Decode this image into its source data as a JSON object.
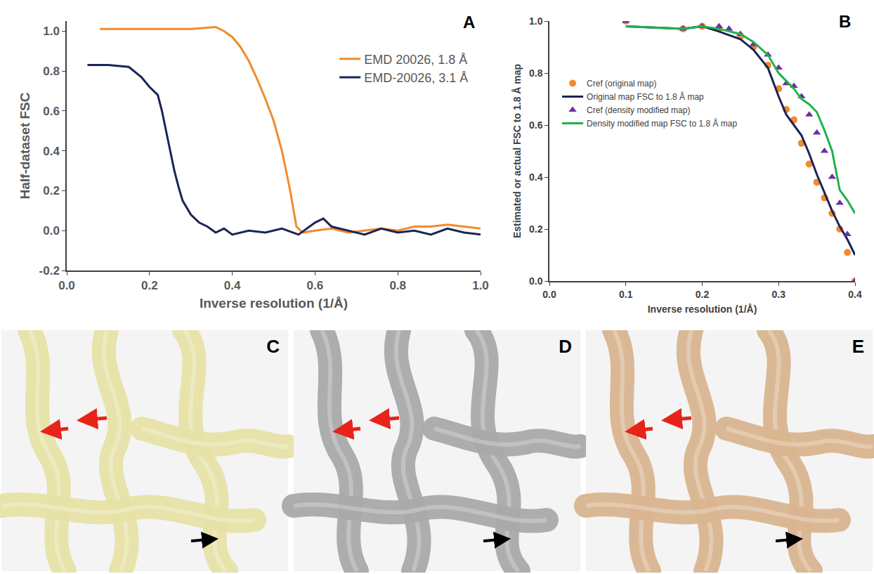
{
  "chart_data": [
    {
      "type": "line",
      "letter": "A",
      "x_label": "Inverse resolution (1/Å)",
      "y_label": "Half-dataset FSC",
      "xlim": [
        0,
        1.0
      ],
      "ylim": [
        -0.2,
        1.05
      ],
      "xticks": [
        {
          "value": 0,
          "label": "0.0"
        },
        {
          "value": 0.2,
          "label": "0.2"
        },
        {
          "value": 0.4,
          "label": "0.4"
        },
        {
          "value": 0.6,
          "label": "0.6"
        },
        {
          "value": 0.8,
          "label": "0.8"
        },
        {
          "value": 1.0,
          "label": "1.0"
        }
      ],
      "yticks": [
        -0.2,
        {
          "value": 0,
          "label": "0.0"
        },
        0.2,
        0.4,
        0.6,
        0.8,
        {
          "value": 1.0,
          "label": "1.0"
        }
      ],
      "grid": false,
      "legend": "upper right",
      "series": [
        {
          "name": "EMD 20026, 1.8 Å",
          "color": "#f28a2e",
          "type": "line",
          "x": [
            0.08,
            0.15,
            0.25,
            0.3,
            0.36,
            0.38,
            0.4,
            0.42,
            0.44,
            0.46,
            0.48,
            0.5,
            0.52,
            0.54,
            0.555,
            0.57,
            0.6,
            0.64,
            0.68,
            0.72,
            0.76,
            0.8,
            0.84,
            0.88,
            0.92,
            0.96,
            1.0
          ],
          "values": [
            1.01,
            1.01,
            1.01,
            1.01,
            1.02,
            1.0,
            0.97,
            0.92,
            0.85,
            0.76,
            0.66,
            0.55,
            0.4,
            0.2,
            0.02,
            -0.01,
            0.0,
            0.01,
            -0.01,
            0.0,
            0.01,
            0.0,
            0.02,
            0.02,
            0.03,
            0.02,
            0.01
          ]
        },
        {
          "name": "EMD-20026, 3.1 Å",
          "color": "#1b2456",
          "type": "line",
          "x": [
            0.05,
            0.1,
            0.15,
            0.18,
            0.2,
            0.22,
            0.23,
            0.24,
            0.25,
            0.26,
            0.27,
            0.28,
            0.3,
            0.32,
            0.34,
            0.36,
            0.38,
            0.4,
            0.44,
            0.48,
            0.52,
            0.56,
            0.6,
            0.62,
            0.64,
            0.68,
            0.72,
            0.76,
            0.8,
            0.84,
            0.88,
            0.92,
            0.96,
            1.0
          ],
          "values": [
            0.83,
            0.83,
            0.82,
            0.77,
            0.72,
            0.68,
            0.6,
            0.5,
            0.4,
            0.3,
            0.22,
            0.15,
            0.08,
            0.04,
            0.02,
            -0.01,
            0.01,
            -0.02,
            0.0,
            -0.01,
            0.01,
            -0.02,
            0.04,
            0.06,
            0.02,
            0.0,
            -0.02,
            0.01,
            -0.01,
            0.0,
            -0.02,
            0.01,
            -0.01,
            -0.02
          ]
        }
      ]
    },
    {
      "type": "line",
      "letter": "B",
      "x_label": "Inverse resolution (1/Å)",
      "y_label": "Estimated or actual FSC to 1.8 Å map",
      "xlim": [
        0,
        0.4
      ],
      "ylim": [
        0,
        1.0
      ],
      "xticks": [
        {
          "value": 0,
          "label": "0.0"
        },
        {
          "value": 0.1,
          "label": "0.1"
        },
        {
          "value": 0.2,
          "label": "0.2"
        },
        {
          "value": 0.3,
          "label": "0.3"
        },
        {
          "value": 0.4,
          "label": "0.4"
        }
      ],
      "yticks": [
        {
          "value": 0,
          "label": "0.0"
        },
        0.2,
        0.4,
        0.6,
        0.8,
        {
          "value": 1.0,
          "label": "1.0"
        }
      ],
      "grid": false,
      "legend": "center left",
      "series": [
        {
          "name": "Cref (original map)",
          "color": "#f28a2e",
          "type": "scatter",
          "marker": "circle",
          "x": [
            0.1,
            0.175,
            0.2,
            0.222,
            0.25,
            0.267,
            0.286,
            0.3,
            0.31,
            0.32,
            0.33,
            0.34,
            0.35,
            0.36,
            0.37,
            0.38,
            0.39,
            0.4
          ],
          "values": [
            1.0,
            0.97,
            0.98,
            0.97,
            0.94,
            0.9,
            0.83,
            0.74,
            0.66,
            0.62,
            0.53,
            0.45,
            0.38,
            0.32,
            0.26,
            0.2,
            0.11,
            0.0
          ]
        },
        {
          "name": "Original map FSC to 1.8 Å map",
          "color": "#1b2456",
          "type": "line",
          "x": [
            0.1,
            0.175,
            0.2,
            0.222,
            0.25,
            0.267,
            0.286,
            0.3,
            0.31,
            0.32,
            0.33,
            0.34,
            0.35,
            0.36,
            0.37,
            0.38,
            0.39,
            0.4
          ],
          "values": [
            0.98,
            0.97,
            0.98,
            0.96,
            0.93,
            0.89,
            0.82,
            0.71,
            0.64,
            0.6,
            0.56,
            0.49,
            0.41,
            0.34,
            0.27,
            0.21,
            0.16,
            0.1
          ]
        },
        {
          "name": "Cref (density modified map)",
          "color": "#7030a0",
          "type": "scatter",
          "marker": "triangle-up",
          "x": [
            0.1,
            0.175,
            0.2,
            0.222,
            0.235,
            0.25,
            0.267,
            0.286,
            0.3,
            0.31,
            0.32,
            0.33,
            0.34,
            0.35,
            0.36,
            0.37,
            0.38,
            0.39,
            0.4
          ],
          "values": [
            1.0,
            0.97,
            0.98,
            0.98,
            0.97,
            0.95,
            0.91,
            0.87,
            0.82,
            0.76,
            0.75,
            0.71,
            0.64,
            0.57,
            0.5,
            0.4,
            0.3,
            0.18,
            0.0
          ]
        },
        {
          "name": "Density modified map FSC to 1.8 Å map",
          "color": "#22b14c",
          "type": "line",
          "x": [
            0.1,
            0.175,
            0.2,
            0.222,
            0.25,
            0.267,
            0.286,
            0.3,
            0.31,
            0.32,
            0.33,
            0.34,
            0.35,
            0.36,
            0.37,
            0.38,
            0.39,
            0.4
          ],
          "values": [
            0.98,
            0.97,
            0.98,
            0.97,
            0.95,
            0.92,
            0.87,
            0.8,
            0.77,
            0.74,
            0.7,
            0.68,
            0.65,
            0.58,
            0.5,
            0.35,
            0.31,
            0.26
          ]
        }
      ]
    }
  ],
  "image_panels": [
    {
      "letter": "C",
      "color": "#e6e1a6"
    },
    {
      "letter": "D",
      "color": "#a9a9a9"
    },
    {
      "letter": "E",
      "color": "#d9b48f"
    }
  ]
}
